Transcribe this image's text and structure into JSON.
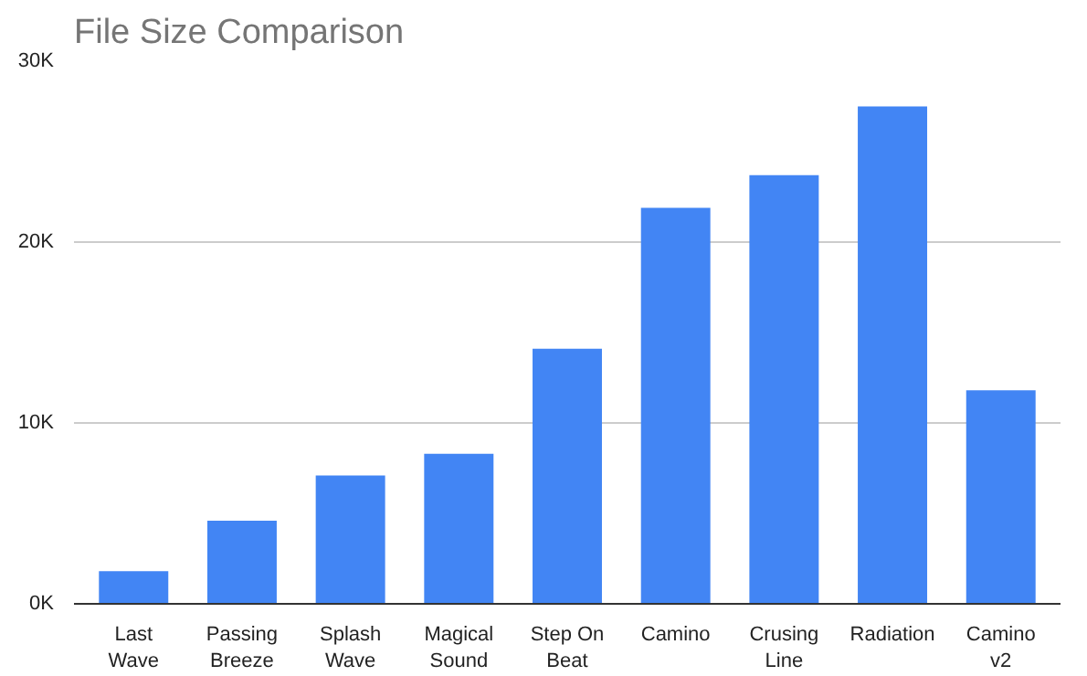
{
  "chart_data": {
    "type": "bar",
    "title": "File Size Comparison",
    "categories": [
      "Last\nWave",
      "Passing\nBreeze",
      "Splash\nWave",
      "Magical\nSound",
      "Step On\nBeat",
      "Camino",
      "Crusing\nLine",
      "Radiation",
      "Camino\nv2"
    ],
    "values": [
      1.8,
      4.6,
      7.1,
      8.3,
      14.1,
      21.9,
      23.7,
      27.5,
      11.8
    ],
    "color": "#4285f4",
    "ylim": [
      0,
      30
    ],
    "yticks": [
      {
        "value": 0,
        "label": "0K"
      },
      {
        "value": 10,
        "label": "10K"
      },
      {
        "value": 20,
        "label": "20K"
      },
      {
        "value": 30,
        "label": "30K"
      }
    ],
    "grid": "y"
  }
}
